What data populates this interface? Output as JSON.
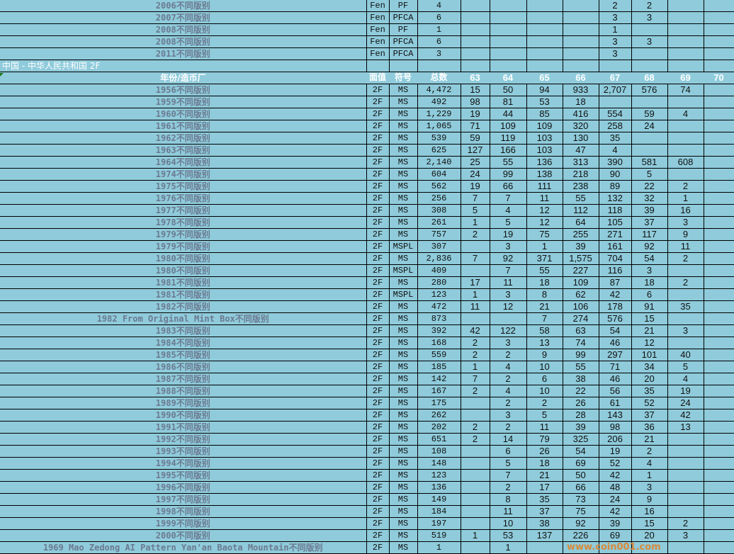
{
  "top_rows": [
    [
      "2006不同版别",
      "Fen",
      "PF",
      "4",
      "",
      "",
      "",
      "",
      "2",
      "2",
      "",
      ""
    ],
    [
      "2007不同版别",
      "Fen",
      "PFCA",
      "6",
      "",
      "",
      "",
      "",
      "3",
      "3",
      "",
      ""
    ],
    [
      "2008不同版别",
      "Fen",
      "PF",
      "1",
      "",
      "",
      "",
      "",
      "1",
      "",
      "",
      ""
    ],
    [
      "2008不同版别",
      "Fen",
      "PFCA",
      "6",
      "",
      "",
      "",
      "",
      "3",
      "3",
      "",
      ""
    ],
    [
      "2011不同版别",
      "Fen",
      "PFCA",
      "3",
      "",
      "",
      "",
      "",
      "3",
      "",
      "",
      ""
    ]
  ],
  "section_title": "中国 - 中华人民共和国 2F",
  "headers": [
    "年份/造币厂",
    "面值",
    "符号",
    "总数",
    "63",
    "64",
    "65",
    "66",
    "67",
    "68",
    "69",
    "70"
  ],
  "rows": [
    [
      "1956不同版别",
      "2F",
      "MS",
      "4,472",
      "15",
      "50",
      "94",
      "933",
      "2,707",
      "576",
      "74",
      ""
    ],
    [
      "1959不同版别",
      "2F",
      "MS",
      "492",
      "98",
      "81",
      "53",
      "18",
      "",
      "",
      "",
      ""
    ],
    [
      "1960不同版别",
      "2F",
      "MS",
      "1,229",
      "19",
      "44",
      "85",
      "416",
      "554",
      "59",
      "4",
      ""
    ],
    [
      "1961不同版别",
      "2F",
      "MS",
      "1,065",
      "71",
      "109",
      "109",
      "320",
      "258",
      "24",
      "",
      ""
    ],
    [
      "1962不同版别",
      "2F",
      "MS",
      "539",
      "59",
      "119",
      "103",
      "130",
      "35",
      "",
      "",
      ""
    ],
    [
      "1963不同版别",
      "2F",
      "MS",
      "625",
      "127",
      "166",
      "103",
      "47",
      "4",
      "",
      "",
      ""
    ],
    [
      "1964不同版别",
      "2F",
      "MS",
      "2,140",
      "25",
      "55",
      "136",
      "313",
      "390",
      "581",
      "608",
      ""
    ],
    [
      "1974不同版别",
      "2F",
      "MS",
      "604",
      "24",
      "99",
      "138",
      "218",
      "90",
      "5",
      "",
      ""
    ],
    [
      "1975不同版别",
      "2F",
      "MS",
      "562",
      "19",
      "66",
      "111",
      "238",
      "89",
      "22",
      "2",
      ""
    ],
    [
      "1976不同版别",
      "2F",
      "MS",
      "256",
      "7",
      "7",
      "11",
      "55",
      "132",
      "32",
      "1",
      ""
    ],
    [
      "1977不同版别",
      "2F",
      "MS",
      "308",
      "5",
      "4",
      "12",
      "112",
      "118",
      "39",
      "16",
      ""
    ],
    [
      "1978不同版别",
      "2F",
      "MS",
      "261",
      "1",
      "5",
      "12",
      "64",
      "105",
      "37",
      "3",
      ""
    ],
    [
      "1979不同版别",
      "2F",
      "MS",
      "757",
      "2",
      "19",
      "75",
      "255",
      "271",
      "117",
      "9",
      ""
    ],
    [
      "1979不同版别",
      "2F",
      "MSPL",
      "307",
      "",
      "3",
      "1",
      "39",
      "161",
      "92",
      "11",
      ""
    ],
    [
      "1980不同版别",
      "2F",
      "MS",
      "2,836",
      "7",
      "92",
      "371",
      "1,575",
      "704",
      "54",
      "2",
      ""
    ],
    [
      "1980不同版别",
      "2F",
      "MSPL",
      "409",
      "",
      "7",
      "55",
      "227",
      "116",
      "3",
      "",
      ""
    ],
    [
      "1981不同版别",
      "2F",
      "MS",
      "280",
      "17",
      "11",
      "18",
      "109",
      "87",
      "18",
      "2",
      ""
    ],
    [
      "1981不同版别",
      "2F",
      "MSPL",
      "123",
      "1",
      "3",
      "8",
      "62",
      "42",
      "6",
      "",
      ""
    ],
    [
      "1982不同版别",
      "2F",
      "MS",
      "472",
      "11",
      "12",
      "21",
      "106",
      "178",
      "91",
      "35",
      ""
    ],
    [
      "1982 From Original Mint Box不同版别",
      "2F",
      "MS",
      "873",
      "",
      "",
      "7",
      "274",
      "576",
      "15",
      "",
      ""
    ],
    [
      "1983不同版别",
      "2F",
      "MS",
      "392",
      "42",
      "122",
      "58",
      "63",
      "54",
      "21",
      "3",
      ""
    ],
    [
      "1984不同版别",
      "2F",
      "MS",
      "168",
      "2",
      "3",
      "13",
      "74",
      "46",
      "12",
      "",
      ""
    ],
    [
      "1985不同版别",
      "2F",
      "MS",
      "559",
      "2",
      "2",
      "9",
      "99",
      "297",
      "101",
      "40",
      ""
    ],
    [
      "1986不同版别",
      "2F",
      "MS",
      "185",
      "1",
      "4",
      "10",
      "55",
      "71",
      "34",
      "5",
      ""
    ],
    [
      "1987不同版别",
      "2F",
      "MS",
      "142",
      "7",
      "2",
      "6",
      "38",
      "46",
      "20",
      "4",
      ""
    ],
    [
      "1988不同版别",
      "2F",
      "MS",
      "167",
      "2",
      "4",
      "10",
      "22",
      "56",
      "35",
      "19",
      ""
    ],
    [
      "1989不同版别",
      "2F",
      "MS",
      "175",
      "",
      "2",
      "2",
      "26",
      "61",
      "52",
      "24",
      ""
    ],
    [
      "1990不同版别",
      "2F",
      "MS",
      "262",
      "",
      "3",
      "5",
      "28",
      "143",
      "37",
      "42",
      ""
    ],
    [
      "1991不同版别",
      "2F",
      "MS",
      "202",
      "2",
      "2",
      "11",
      "39",
      "98",
      "36",
      "13",
      ""
    ],
    [
      "1992不同版别",
      "2F",
      "MS",
      "651",
      "2",
      "14",
      "79",
      "325",
      "206",
      "21",
      "",
      ""
    ],
    [
      "1993不同版别",
      "2F",
      "MS",
      "108",
      "",
      "6",
      "26",
      "54",
      "19",
      "2",
      "",
      ""
    ],
    [
      "1994不同版别",
      "2F",
      "MS",
      "148",
      "",
      "5",
      "18",
      "69",
      "52",
      "4",
      "",
      ""
    ],
    [
      "1995不同版别",
      "2F",
      "MS",
      "123",
      "",
      "7",
      "21",
      "50",
      "42",
      "1",
      "",
      ""
    ],
    [
      "1996不同版别",
      "2F",
      "MS",
      "136",
      "",
      "2",
      "17",
      "66",
      "48",
      "3",
      "",
      ""
    ],
    [
      "1997不同版别",
      "2F",
      "MS",
      "149",
      "",
      "8",
      "35",
      "73",
      "24",
      "9",
      "",
      ""
    ],
    [
      "1998不同版别",
      "2F",
      "MS",
      "184",
      "",
      "11",
      "37",
      "75",
      "42",
      "16",
      "",
      ""
    ],
    [
      "1999不同版别",
      "2F",
      "MS",
      "197",
      "",
      "10",
      "38",
      "92",
      "39",
      "15",
      "2",
      ""
    ],
    [
      "2000不同版别",
      "2F",
      "MS",
      "519",
      "1",
      "53",
      "137",
      "226",
      "69",
      "20",
      "3",
      ""
    ],
    [
      "1969 Mao Zedong AI Pattern Yan'an Baota Mountain不同版别",
      "2F",
      "MS",
      "1",
      "",
      "1",
      "",
      "",
      "",
      "",
      "",
      ""
    ]
  ],
  "watermark": "www.coin001.com",
  "colors": {
    "background": "#8fcbdb",
    "label_text": "#6b7a90",
    "header_text": "#ffffff"
  }
}
